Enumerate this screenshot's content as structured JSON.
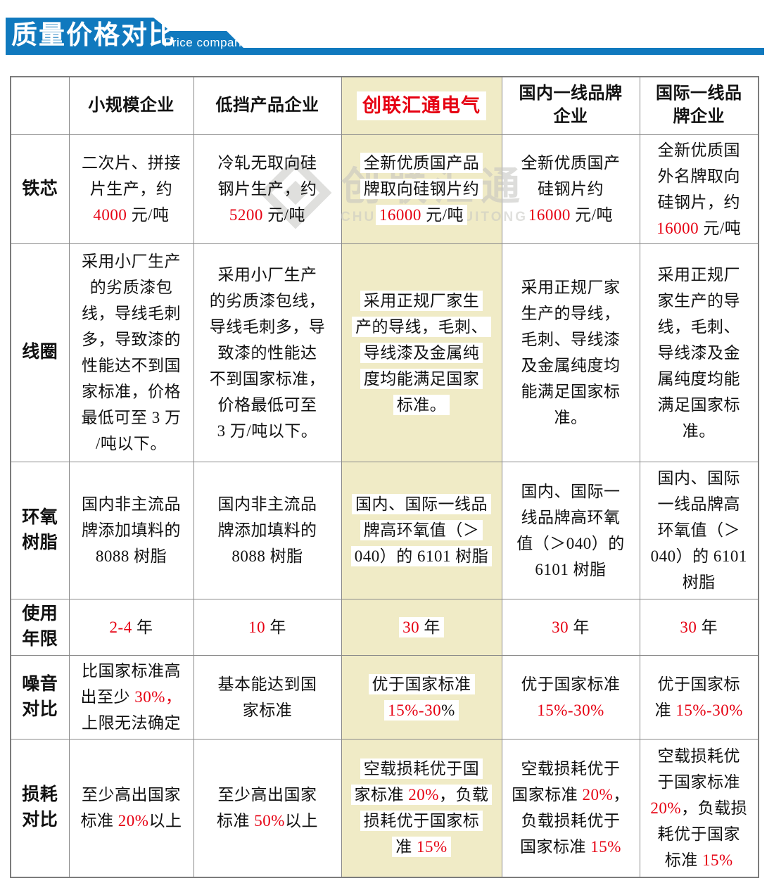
{
  "banner": {
    "title": "质量价格对比",
    "subtitle": "Price comparison"
  },
  "colors": {
    "banner_blue": "#1079be",
    "highlight_bg": "#f0ebc6",
    "accent_red": "#e60012",
    "border_gray": "#8a8a8a"
  },
  "watermark": {
    "cn": "创联汇通",
    "en": "CHUANGLIANHUITONG"
  },
  "table": {
    "highlight_col": 3,
    "columns": [
      {
        "lines": [
          ""
        ]
      },
      {
        "lines": [
          "小规模企业"
        ]
      },
      {
        "lines": [
          "低挡产品企业"
        ]
      },
      {
        "lines": [
          "创联汇通电气"
        ],
        "brand": true
      },
      {
        "lines": [
          "国内一线品牌",
          "企业"
        ]
      },
      {
        "lines": [
          "国际一线品",
          "牌企业"
        ]
      }
    ],
    "rows": [
      {
        "label": "铁芯",
        "cells": [
          [
            {
              "t": "二次片、拼接"
            },
            {
              "b": 1
            },
            {
              "t": "片生产，约"
            },
            {
              "b": 1
            },
            {
              "t": "4000",
              "r": 1
            },
            {
              "t": " 元/吨"
            }
          ],
          [
            {
              "t": "冷轧无取向硅"
            },
            {
              "b": 1
            },
            {
              "t": "钢片生产，约"
            },
            {
              "b": 1
            },
            {
              "t": "5200",
              "r": 1
            },
            {
              "t": " 元/吨"
            }
          ],
          [
            {
              "t": "全新优质国产品"
            },
            {
              "b": 1
            },
            {
              "t": "牌取向硅钢片约"
            },
            {
              "b": 1
            },
            {
              "t": "16000",
              "r": 1
            },
            {
              "t": " 元/吨"
            }
          ],
          [
            {
              "t": "全新优质国产"
            },
            {
              "b": 1
            },
            {
              "t": "硅钢片约"
            },
            {
              "b": 1
            },
            {
              "t": "16000",
              "r": 1
            },
            {
              "t": " 元/吨"
            }
          ],
          [
            {
              "t": "全新优质国"
            },
            {
              "b": 1
            },
            {
              "t": "外名牌取向"
            },
            {
              "b": 1
            },
            {
              "t": "硅钢片，约"
            },
            {
              "b": 1
            },
            {
              "t": "16000",
              "r": 1
            },
            {
              "t": " 元/吨"
            }
          ]
        ]
      },
      {
        "label": "线圈",
        "cells": [
          [
            {
              "t": "采用小厂生产"
            },
            {
              "b": 1
            },
            {
              "t": "的劣质漆包"
            },
            {
              "b": 1
            },
            {
              "t": "线，导线毛刺"
            },
            {
              "b": 1
            },
            {
              "t": "多，导致漆的"
            },
            {
              "b": 1
            },
            {
              "t": "性能达不到国"
            },
            {
              "b": 1
            },
            {
              "t": "家标准，价格"
            },
            {
              "b": 1
            },
            {
              "t": "最低可至 3 万"
            },
            {
              "b": 1
            },
            {
              "t": "/吨以下。"
            }
          ],
          [
            {
              "t": "采用小厂生产"
            },
            {
              "b": 1
            },
            {
              "t": "的劣质漆包线，"
            },
            {
              "b": 1
            },
            {
              "t": "导线毛刺多，导"
            },
            {
              "b": 1
            },
            {
              "t": "致漆的性能达"
            },
            {
              "b": 1
            },
            {
              "t": "不到国家标准，"
            },
            {
              "b": 1
            },
            {
              "t": "价格最低可至"
            },
            {
              "b": 1
            },
            {
              "t": "3 万/吨以下。"
            }
          ],
          [
            {
              "t": "采用正规厂家生"
            },
            {
              "b": 1
            },
            {
              "t": "产的导线，毛刺、"
            },
            {
              "b": 1
            },
            {
              "t": "导线漆及金属纯"
            },
            {
              "b": 1
            },
            {
              "t": "度均能满足国家"
            },
            {
              "b": 1
            },
            {
              "t": "标准。"
            }
          ],
          [
            {
              "t": "采用正规厂家"
            },
            {
              "b": 1
            },
            {
              "t": "生产的导线，"
            },
            {
              "b": 1
            },
            {
              "t": "毛刺、导线漆"
            },
            {
              "b": 1
            },
            {
              "t": "及金属纯度均"
            },
            {
              "b": 1
            },
            {
              "t": "能满足国家标"
            },
            {
              "b": 1
            },
            {
              "t": "准。"
            }
          ],
          [
            {
              "t": "采用正规厂"
            },
            {
              "b": 1
            },
            {
              "t": "家生产的导"
            },
            {
              "b": 1
            },
            {
              "t": "线，毛刺、"
            },
            {
              "b": 1
            },
            {
              "t": "导线漆及金"
            },
            {
              "b": 1
            },
            {
              "t": "属纯度均能"
            },
            {
              "b": 1
            },
            {
              "t": "满足国家标"
            },
            {
              "b": 1
            },
            {
              "t": "准。"
            }
          ]
        ]
      },
      {
        "label": "环氧树脂",
        "cells": [
          [
            {
              "t": "国内非主流品"
            },
            {
              "b": 1
            },
            {
              "t": "牌添加填料的"
            },
            {
              "b": 1
            },
            {
              "t": "8088 树脂"
            }
          ],
          [
            {
              "t": "国内非主流品"
            },
            {
              "b": 1
            },
            {
              "t": "牌添加填料的"
            },
            {
              "b": 1
            },
            {
              "t": "8088 树脂"
            }
          ],
          [
            {
              "t": "国内、国际一线品"
            },
            {
              "b": 1
            },
            {
              "t": "牌高环氧值（＞"
            },
            {
              "b": 1
            },
            {
              "t": "040）的 6101 树脂"
            }
          ],
          [
            {
              "t": "国内、国际一"
            },
            {
              "b": 1
            },
            {
              "t": "线品牌高环氧"
            },
            {
              "b": 1
            },
            {
              "t": "值（＞040）的"
            },
            {
              "b": 1
            },
            {
              "t": "6101 树脂"
            }
          ],
          [
            {
              "t": "国内、国际"
            },
            {
              "b": 1
            },
            {
              "t": "一线品牌高"
            },
            {
              "b": 1
            },
            {
              "t": "环氧值（＞"
            },
            {
              "b": 1
            },
            {
              "t": "040）的 6101"
            },
            {
              "b": 1
            },
            {
              "t": "树脂"
            }
          ]
        ]
      },
      {
        "label": "使用年限",
        "cells": [
          [
            {
              "t": "2-4",
              "r": 1
            },
            {
              "t": " 年"
            }
          ],
          [
            {
              "t": "10",
              "r": 1
            },
            {
              "t": " 年"
            }
          ],
          [
            {
              "t": "30",
              "r": 1
            },
            {
              "t": " 年"
            }
          ],
          [
            {
              "t": "30",
              "r": 1
            },
            {
              "t": " 年"
            }
          ],
          [
            {
              "t": "30",
              "r": 1
            },
            {
              "t": " 年"
            }
          ]
        ]
      },
      {
        "label": "噪音对比",
        "cells": [
          [
            {
              "t": "比国家标准高"
            },
            {
              "b": 1
            },
            {
              "t": "出至少 "
            },
            {
              "t": "30%，",
              "r": 1
            },
            {
              "b": 1
            },
            {
              "t": "上限无法确定"
            }
          ],
          [
            {
              "t": "基本能达到国"
            },
            {
              "b": 1
            },
            {
              "t": "家标准"
            }
          ],
          [
            {
              "t": "优于国家标准"
            },
            {
              "b": 1
            },
            {
              "t": "15%-30",
              "r": 1
            },
            {
              "t": "%"
            }
          ],
          [
            {
              "t": "优于国家标准"
            },
            {
              "b": 1
            },
            {
              "t": "15%-30%",
              "r": 1
            }
          ],
          [
            {
              "t": "优于国家标"
            },
            {
              "b": 1
            },
            {
              "t": "准 "
            },
            {
              "t": "15%-30%",
              "r": 1
            }
          ]
        ]
      },
      {
        "label": "损耗对比",
        "cells": [
          [
            {
              "t": "至少高出国家"
            },
            {
              "b": 1
            },
            {
              "t": "标准 "
            },
            {
              "t": "20%",
              "r": 1
            },
            {
              "t": "以上"
            }
          ],
          [
            {
              "t": "至少高出国家"
            },
            {
              "b": 1
            },
            {
              "t": "标准 "
            },
            {
              "t": "50%",
              "r": 1
            },
            {
              "t": "以上"
            }
          ],
          [
            {
              "t": "空载损耗优于国"
            },
            {
              "b": 1
            },
            {
              "t": "家标准 "
            },
            {
              "t": "20%",
              "r": 1
            },
            {
              "t": "，负载"
            },
            {
              "b": 1
            },
            {
              "t": "损耗优于国家标"
            },
            {
              "b": 1
            },
            {
              "t": "准 "
            },
            {
              "t": "15%",
              "r": 1
            }
          ],
          [
            {
              "t": "空载损耗优于"
            },
            {
              "b": 1
            },
            {
              "t": "国家标准 "
            },
            {
              "t": "20%",
              "r": 1
            },
            {
              "t": "，"
            },
            {
              "b": 1
            },
            {
              "t": "负载损耗优于"
            },
            {
              "b": 1
            },
            {
              "t": "国家标准 "
            },
            {
              "t": "15%",
              "r": 1
            }
          ],
          [
            {
              "t": "空载损耗优"
            },
            {
              "b": 1
            },
            {
              "t": "于国家标准"
            },
            {
              "b": 1
            },
            {
              "t": "20%",
              "r": 1
            },
            {
              "t": "，负载损"
            },
            {
              "b": 1
            },
            {
              "t": "耗优于国家"
            },
            {
              "b": 1
            },
            {
              "t": "标准 "
            },
            {
              "t": "15%",
              "r": 1
            }
          ]
        ]
      }
    ]
  }
}
